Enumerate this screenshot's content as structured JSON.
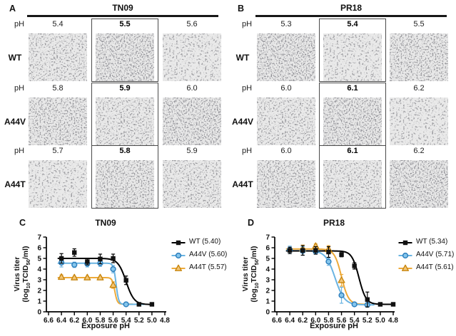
{
  "micro_panels": [
    {
      "letter": "A",
      "title": "TN09",
      "ph_label": "pH",
      "rows": [
        {
          "label": "WT",
          "values": [
            "5.4",
            "5.5",
            "5.6"
          ],
          "highlighted_value_index": 1
        },
        {
          "label": "A44V",
          "values": [
            "5.8",
            "5.9",
            "6.0"
          ],
          "highlighted_value_index": 1
        },
        {
          "label": "A44T",
          "values": [
            "5.7",
            "5.8",
            "5.9"
          ],
          "highlighted_value_index": 1
        }
      ]
    },
    {
      "letter": "B",
      "title": "PR18",
      "ph_label": "pH",
      "rows": [
        {
          "label": "WT",
          "values": [
            "5.3",
            "5.4",
            "5.5"
          ],
          "highlighted_value_index": 1
        },
        {
          "label": "A44V",
          "values": [
            "6.0",
            "6.1",
            "6.2"
          ],
          "highlighted_value_index": 1
        },
        {
          "label": "A44T",
          "values": [
            "6.0",
            "6.1",
            "6.2"
          ],
          "highlighted_value_index": 1
        }
      ]
    }
  ],
  "ylabel": {
    "line1": "Virus titer",
    "p1": "(log",
    "s1": "10",
    "p2": "TCID",
    "s2": "50",
    "p3": "/ml)"
  },
  "chart_data": [
    {
      "type": "line",
      "panel_letter": "C",
      "title": "TN09",
      "xlabel": "Exposure pH",
      "ylabel": "Virus titer (log10TCID50/ml)",
      "xlim": [
        6.6,
        4.8
      ],
      "ylim": [
        0,
        7
      ],
      "x_ticks": [
        6.6,
        6.4,
        6.2,
        6.0,
        5.8,
        5.6,
        5.4,
        5.2,
        5.0,
        4.8
      ],
      "y_ticks": [
        0,
        1,
        2,
        3,
        4,
        5,
        6,
        7
      ],
      "grid": false,
      "legend_position": "right",
      "series": [
        {
          "name": "WT",
          "legend": "WT (5.40)",
          "marker": "square",
          "line": "#000000",
          "fill": "#111111",
          "stroke": "#000000",
          "points": [
            [
              6.4,
              5.0,
              0.45
            ],
            [
              6.2,
              5.55,
              0.35
            ],
            [
              6.0,
              4.7,
              0.3
            ],
            [
              5.8,
              4.95,
              0.45
            ],
            [
              5.6,
              5.0,
              0.4
            ],
            [
              5.4,
              2.95,
              0.4
            ],
            [
              5.2,
              0.7,
              0
            ],
            [
              5.0,
              0.7,
              0
            ]
          ],
          "curve": {
            "top": 5.0,
            "bottom": 0.68,
            "mid": 5.4,
            "hill": 7,
            "xstart": 6.45,
            "xend": 4.98
          }
        },
        {
          "name": "A44V",
          "legend": "A44V (5.60)",
          "marker": "circle",
          "line": "#6ab4e2",
          "fill": "#85c6ec",
          "stroke": "#2e7fbd",
          "points": [
            [
              6.4,
              4.6,
              0.4
            ],
            [
              6.2,
              4.4,
              0.25
            ],
            [
              6.0,
              4.5,
              0.3
            ],
            [
              5.8,
              4.55,
              0.3
            ],
            [
              5.6,
              4.0,
              0.35
            ],
            [
              5.4,
              0.7,
              0
            ]
          ],
          "curve": {
            "top": 4.55,
            "bottom": 0.7,
            "mid": 5.555,
            "hill": 22,
            "xstart": 6.45,
            "xend": 5.12
          }
        },
        {
          "name": "A44T",
          "legend": "A44T (5.57)",
          "marker": "triangle",
          "line": "#edaa3a",
          "fill": "#f2c577",
          "stroke": "#c8860e",
          "points": [
            [
              6.4,
              3.25,
              0.2
            ],
            [
              6.2,
              3.2,
              0.12
            ],
            [
              6.0,
              3.2,
              0.12
            ],
            [
              5.8,
              3.2,
              0.12
            ],
            [
              5.6,
              2.5,
              0.3
            ]
          ],
          "curve": {
            "top": 3.2,
            "bottom": 0.72,
            "mid": 5.575,
            "hill": 22,
            "xstart": 6.45,
            "xend": 5.3
          }
        }
      ]
    },
    {
      "type": "line",
      "panel_letter": "D",
      "title": "PR18",
      "xlabel": "Exposure pH",
      "ylabel": "Virus titer (log10TCID50/ml)",
      "xlim": [
        6.6,
        4.8
      ],
      "ylim": [
        0,
        7
      ],
      "x_ticks": [
        6.6,
        6.4,
        6.2,
        6.0,
        5.8,
        5.6,
        5.4,
        5.2,
        5.0,
        4.8
      ],
      "y_ticks": [
        0,
        1,
        2,
        3,
        4,
        5,
        6,
        7
      ],
      "grid": false,
      "legend_position": "right",
      "series": [
        {
          "name": "WT",
          "legend": "WT (5.34)",
          "marker": "square",
          "line": "#000000",
          "fill": "#111111",
          "stroke": "#000000",
          "points": [
            [
              6.4,
              5.75,
              0.3
            ],
            [
              6.2,
              5.75,
              0.45
            ],
            [
              6.0,
              5.75,
              0.35
            ],
            [
              5.8,
              5.6,
              0.5
            ],
            [
              5.6,
              5.35,
              0.2
            ],
            [
              5.4,
              4.3,
              0.3
            ],
            [
              5.2,
              1.15,
              0.7
            ],
            [
              5.0,
              0.7,
              0
            ],
            [
              4.8,
              0.7,
              0
            ]
          ],
          "curve": {
            "top": 5.7,
            "bottom": 0.7,
            "mid": 5.33,
            "hill": 8,
            "xstart": 6.45,
            "xend": 4.78
          }
        },
        {
          "name": "A44V",
          "legend": "A44V (5.71)",
          "marker": "circle",
          "line": "#6ab4e2",
          "fill": "#85c6ec",
          "stroke": "#2e7fbd",
          "points": [
            [
              6.4,
              5.8,
              0.35
            ],
            [
              6.2,
              5.7,
              0.4
            ],
            [
              6.0,
              5.65,
              0.25
            ],
            [
              5.8,
              4.7,
              0.35
            ],
            [
              5.6,
              1.55,
              0.75
            ],
            [
              5.4,
              0.7,
              0
            ],
            [
              5.2,
              0.65,
              0.2
            ]
          ],
          "curve": {
            "top": 5.72,
            "bottom": 0.65,
            "mid": 5.7,
            "hill": 6,
            "xstart": 6.45,
            "xend": 5.1
          }
        },
        {
          "name": "A44T",
          "legend": "A44T (5.61)",
          "marker": "triangle",
          "line": "#edaa3a",
          "fill": "#f2c577",
          "stroke": "#c8860e",
          "points": [
            [
              6.2,
              5.9,
              0.35
            ],
            [
              6.0,
              6.15,
              0.2
            ],
            [
              5.8,
              5.85,
              0.35
            ],
            [
              5.6,
              2.95,
              0.55
            ]
          ],
          "curve": {
            "top": 5.88,
            "bottom": 0.7,
            "mid": 5.6,
            "hill": 8,
            "xstart": 6.45,
            "xend": 5.2
          }
        }
      ]
    }
  ],
  "colors": {
    "highlight_box_border": "#4a4a4a",
    "a44v_blue": "#6ab4e2",
    "a44t_orange": "#edaa3a",
    "wt_black": "#000000"
  }
}
